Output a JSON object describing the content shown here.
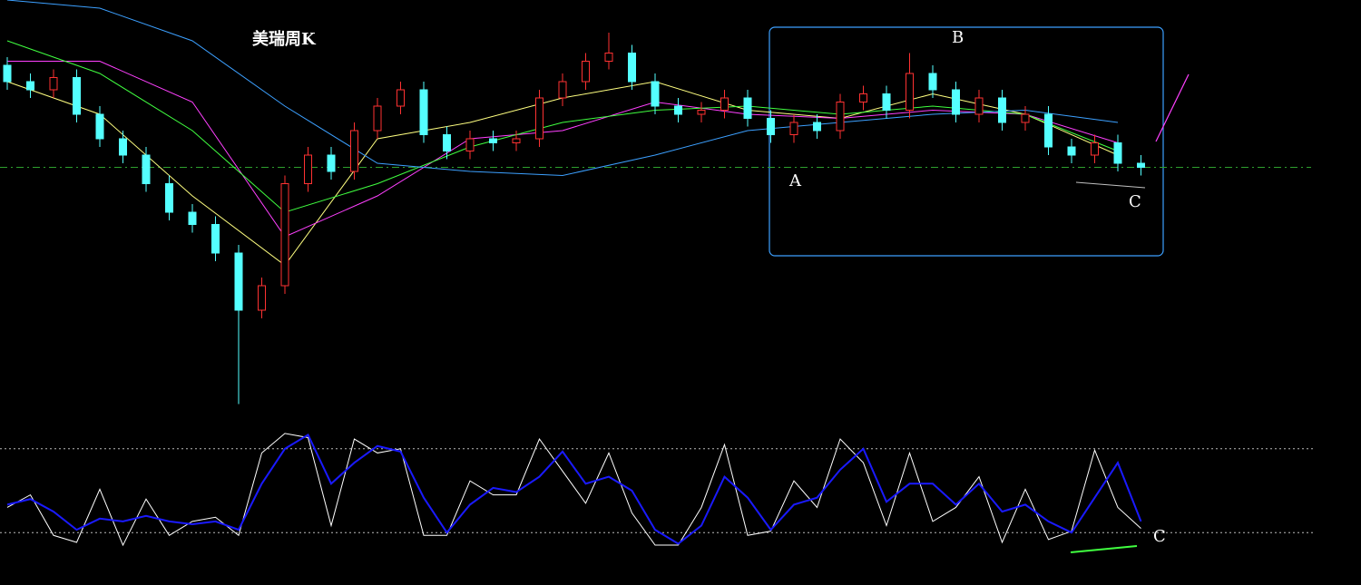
{
  "chart_data": {
    "type": "candlestick",
    "title": "美瑞周K",
    "ylim": [
      0,
      100
    ],
    "up_color": "#ff3232",
    "down_color": "#54ffff",
    "candles": {
      "open": [
        84,
        80,
        78,
        81,
        72,
        66,
        62,
        55,
        48,
        45,
        38,
        24,
        30,
        55,
        62,
        58,
        68,
        74,
        78,
        67,
        63,
        66,
        65,
        66,
        76,
        80,
        85,
        87,
        80,
        74,
        72,
        73,
        76,
        71,
        67,
        70,
        68,
        75,
        77,
        73,
        82,
        78,
        72,
        76,
        70,
        72,
        64,
        62,
        65,
        60
      ],
      "high": [
        86,
        82,
        83,
        83,
        74,
        68,
        64,
        57,
        50,
        47,
        40,
        32,
        57,
        64,
        64,
        70,
        76,
        80,
        80,
        69,
        68,
        68,
        68,
        78,
        82,
        87,
        92,
        89,
        82,
        76,
        75,
        78,
        78,
        73,
        72,
        72,
        77,
        79,
        79,
        87,
        84,
        80,
        78,
        78,
        74,
        74,
        66,
        67,
        67,
        62
      ],
      "low": [
        78,
        76,
        76,
        70,
        64,
        60,
        53,
        46,
        43,
        36,
        1,
        22,
        28,
        53,
        56,
        56,
        66,
        72,
        65,
        61,
        61,
        63,
        63,
        64,
        74,
        78,
        83,
        78,
        72,
        70,
        70,
        71,
        69,
        65,
        65,
        66,
        66,
        73,
        71,
        71,
        76,
        70,
        70,
        68,
        68,
        62,
        60,
        60,
        58,
        57
      ],
      "close": [
        80,
        78,
        81,
        72,
        66,
        62,
        55,
        48,
        45,
        38,
        24,
        30,
        55,
        62,
        58,
        68,
        74,
        78,
        67,
        63,
        66,
        65,
        66,
        76,
        80,
        85,
        87,
        80,
        74,
        72,
        73,
        76,
        71,
        67,
        70,
        68,
        75,
        77,
        73,
        82,
        78,
        72,
        76,
        70,
        72,
        64,
        62,
        65,
        60,
        59
      ]
    },
    "moving_averages": {
      "x": [
        0,
        4,
        8,
        12,
        16,
        20,
        24,
        28,
        32,
        36,
        40,
        44,
        48
      ],
      "series": [
        {
          "color": "#ffff80",
          "values": [
            80,
            72,
            52,
            35,
            66,
            70,
            76,
            80,
            73,
            71,
            77,
            72,
            62
          ]
        },
        {
          "color": "#ff40ff",
          "values": [
            85,
            85,
            75,
            42,
            52,
            66,
            68,
            75,
            72,
            71,
            73,
            72,
            65
          ]
        },
        {
          "color": "#40ff40",
          "values": [
            90,
            82,
            68,
            48,
            55,
            64,
            70,
            73,
            74,
            72,
            74,
            72,
            63
          ]
        },
        {
          "color": "#3ca0ff",
          "values": [
            100,
            98,
            90,
            74,
            60,
            58,
            57,
            62,
            68,
            70,
            72,
            73,
            70
          ]
        }
      ]
    },
    "reference_line": 59,
    "annotations": [
      "A",
      "B",
      "C"
    ],
    "oscillator": {
      "ylim": [
        0,
        100
      ],
      "levels": [
        80,
        20
      ],
      "series": [
        {
          "color": "#ffffff",
          "values": [
            38,
            47,
            18,
            13,
            51,
            11,
            44,
            18,
            28,
            31,
            18,
            77,
            91,
            88,
            25,
            87,
            77,
            80,
            18,
            18,
            57,
            47,
            47,
            87,
            64,
            41,
            77,
            34,
            11,
            11,
            38,
            83,
            18,
            21,
            57,
            38,
            87,
            70,
            25,
            77,
            28,
            38,
            60,
            13,
            51,
            15,
            21,
            79,
            38,
            23
          ]
        },
        {
          "color": "#1a1aff",
          "values": [
            40,
            44,
            35,
            22,
            30,
            28,
            32,
            28,
            26,
            28,
            22,
            55,
            80,
            90,
            55,
            70,
            82,
            78,
            45,
            20,
            40,
            52,
            49,
            60,
            78,
            55,
            60,
            50,
            22,
            12,
            25,
            60,
            45,
            22,
            40,
            45,
            65,
            80,
            42,
            55,
            55,
            40,
            55,
            35,
            40,
            28,
            20,
            45,
            70,
            28
          ]
        }
      ],
      "label": "C"
    }
  }
}
